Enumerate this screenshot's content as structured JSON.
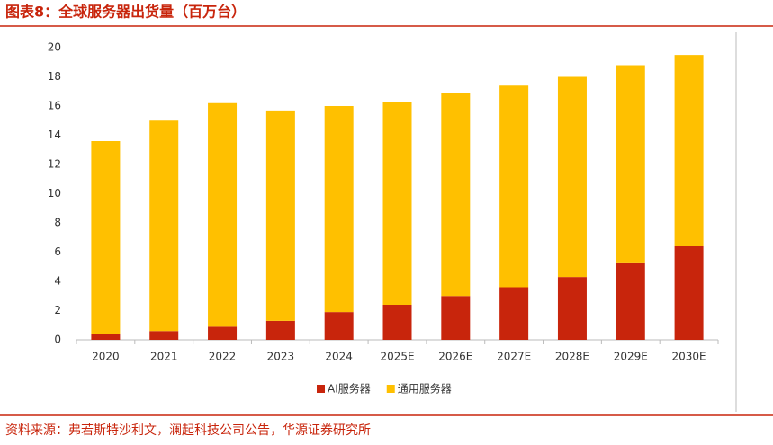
{
  "chart_data": {
    "type": "stacked-bar",
    "title": "图表8：全球服务器出货量（百万台）",
    "source": "资料来源：弗若斯特沙利文，澜起科技公司公告，华源证券研究所",
    "categories": [
      "2020",
      "2021",
      "2022",
      "2023",
      "2024",
      "2025E",
      "2026E",
      "2027E",
      "2028E",
      "2029E",
      "2030E"
    ],
    "series": [
      {
        "name": "AI服务器",
        "color": "#c8250c",
        "values": [
          0.4,
          0.6,
          0.9,
          1.3,
          1.9,
          2.4,
          3.0,
          3.6,
          4.3,
          5.3,
          6.4
        ]
      },
      {
        "name": "通用服务器",
        "color": "#ffc000",
        "values": [
          13.2,
          14.4,
          15.3,
          14.4,
          14.1,
          13.9,
          13.9,
          13.8,
          13.7,
          13.5,
          13.1
        ]
      }
    ],
    "ylim": [
      0,
      20
    ],
    "yticks": [
      0,
      2,
      4,
      6,
      8,
      10,
      12,
      14,
      16,
      18,
      20
    ],
    "legend": "bottom"
  }
}
